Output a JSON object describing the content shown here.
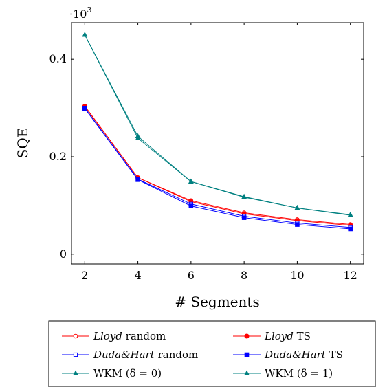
{
  "chart_data": {
    "type": "line",
    "x": [
      2,
      4,
      6,
      8,
      10,
      12
    ],
    "xlabel": "# Segments",
    "ylabel": "SQE",
    "y_multiplier_base": "·10",
    "y_multiplier_exp": "3",
    "xlim": [
      1.5,
      12.5
    ],
    "ylim": [
      -0.02,
      0.475
    ],
    "xticks": [
      2,
      4,
      6,
      8,
      10,
      12
    ],
    "yticks": [
      0,
      0.2,
      0.4
    ],
    "ytick_labels": [
      "0",
      "0.2",
      "0.4"
    ],
    "grid": false,
    "legend_position": "bottom",
    "series": [
      {
        "name": "Lloyd random",
        "name_italic": "Lloyd",
        "name_rest": " random",
        "color": "#ff0000",
        "marker": "open-circle",
        "values": [
          0.304,
          0.157,
          0.11,
          0.085,
          0.071,
          0.061
        ]
      },
      {
        "name": "Lloyd TS",
        "name_italic": "Lloyd",
        "name_rest": " TS",
        "color": "#ff0000",
        "marker": "filled-circle",
        "values": [
          0.303,
          0.157,
          0.108,
          0.083,
          0.069,
          0.059
        ]
      },
      {
        "name": "Duda&Hart random",
        "name_italic": "Duda&Hart",
        "name_rest": " random",
        "color": "#0000ff",
        "marker": "open-square",
        "values": [
          0.3,
          0.154,
          0.103,
          0.078,
          0.064,
          0.055
        ]
      },
      {
        "name": "Duda&Hart TS",
        "name_italic": "Duda&Hart",
        "name_rest": " TS",
        "color": "#0000ff",
        "marker": "filled-square",
        "values": [
          0.299,
          0.153,
          0.099,
          0.075,
          0.061,
          0.052
        ]
      },
      {
        "name": "WKM (δ = 0)",
        "name_italic": "",
        "name_rest": "WKM (δ = 0)",
        "color": "#008080",
        "marker": "triangle",
        "values": [
          0.45,
          0.242,
          0.149,
          0.118,
          0.095,
          0.081
        ]
      },
      {
        "name": "WKM (δ = 1)",
        "name_italic": "",
        "name_rest": "WKM (δ = 1)",
        "color": "#008080",
        "marker": "triangle",
        "values": [
          0.45,
          0.238,
          0.149,
          0.117,
          0.095,
          0.08
        ]
      }
    ]
  }
}
